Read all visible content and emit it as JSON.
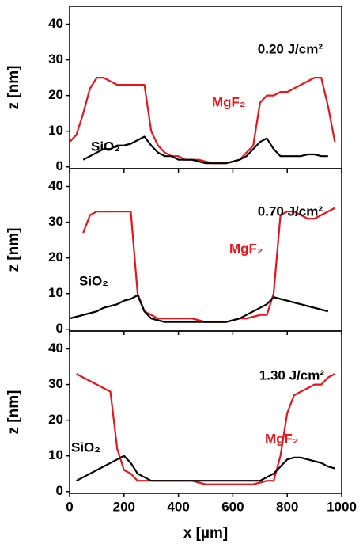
{
  "chart_data": [
    {
      "type": "line",
      "annotation": "0.20 J/cm²",
      "ylabel": "z [nm]",
      "x": [
        0,
        25,
        50,
        75,
        100,
        125,
        150,
        175,
        200,
        225,
        250,
        275,
        300,
        325,
        350,
        375,
        400,
        425,
        450,
        475,
        500,
        525,
        550,
        575,
        600,
        625,
        650,
        675,
        700,
        725,
        750,
        775,
        800,
        825,
        850,
        875,
        900,
        925,
        950,
        975,
        1000
      ],
      "series": [
        {
          "name": "MgF₂",
          "color": "#e8141a",
          "values": [
            7,
            9,
            15,
            22,
            25,
            25,
            24,
            23,
            23,
            23,
            23,
            23,
            10,
            6,
            4,
            3,
            3,
            2,
            2,
            2,
            1.5,
            1,
            1,
            1,
            1.5,
            2,
            4,
            6,
            18,
            20,
            20,
            21,
            21,
            22,
            23,
            24,
            25,
            25,
            17,
            7,
            null
          ]
        },
        {
          "name": "SiO₂",
          "color": "#000000",
          "values": [
            null,
            null,
            2,
            3,
            4,
            5,
            5,
            6,
            6,
            6.5,
            7.5,
            8.5,
            6,
            4,
            3,
            3,
            2,
            2,
            2,
            1.5,
            1,
            1,
            1,
            1,
            1.5,
            2,
            3,
            5,
            7,
            8,
            5,
            3,
            3,
            3,
            3,
            3.5,
            3.5,
            3,
            3,
            null,
            null
          ]
        }
      ],
      "xlim": [
        0,
        1000
      ],
      "xticks": [
        0,
        200,
        400,
        600,
        800,
        1000
      ],
      "ylim": [
        -0.5,
        45
      ],
      "yticks": [
        0,
        10,
        20,
        30,
        40
      ]
    },
    {
      "type": "line",
      "annotation": "0.70 J/cm²",
      "ylabel": "z [nm]",
      "x": [
        0,
        25,
        50,
        75,
        100,
        125,
        150,
        175,
        200,
        225,
        250,
        275,
        300,
        325,
        350,
        375,
        400,
        425,
        450,
        475,
        500,
        525,
        550,
        575,
        600,
        625,
        650,
        675,
        700,
        725,
        750,
        775,
        800,
        825,
        850,
        875,
        900,
        925,
        950,
        975,
        1000
      ],
      "series": [
        {
          "name": "MgF₂",
          "color": "#e8141a",
          "values": [
            null,
            null,
            27,
            32,
            33,
            33,
            33,
            33,
            33,
            33,
            10,
            5,
            4,
            3,
            3,
            3,
            3,
            3,
            3,
            2.5,
            2,
            2,
            2,
            2,
            2.5,
            3,
            3,
            3.5,
            4,
            4,
            10,
            32,
            33,
            33,
            32,
            31,
            31,
            32,
            33,
            34,
            null
          ]
        },
        {
          "name": "SiO₂",
          "color": "#000000",
          "values": [
            3,
            3.5,
            4,
            4.5,
            5,
            6,
            6.5,
            7,
            8,
            8.5,
            9.5,
            5,
            3,
            2.5,
            2,
            2,
            2,
            2,
            2,
            2,
            2,
            2,
            2,
            2,
            2.5,
            3,
            4,
            5,
            6,
            7,
            9,
            8.5,
            8,
            7.5,
            7,
            6.5,
            6,
            5.5,
            5,
            null,
            null
          ]
        }
      ],
      "xlim": [
        0,
        1000
      ],
      "xticks": [
        0,
        200,
        400,
        600,
        800,
        1000
      ],
      "ylim": [
        -0.5,
        45
      ],
      "yticks": [
        0,
        10,
        20,
        30,
        40
      ]
    },
    {
      "type": "line",
      "annotation": "1.30 J/cm²",
      "ylabel": "z [nm]",
      "xlabel": "x [µm]",
      "x": [
        0,
        25,
        50,
        75,
        100,
        125,
        150,
        175,
        200,
        225,
        250,
        275,
        300,
        325,
        350,
        375,
        400,
        425,
        450,
        475,
        500,
        525,
        550,
        575,
        600,
        625,
        650,
        675,
        700,
        725,
        750,
        775,
        800,
        825,
        850,
        875,
        900,
        925,
        950,
        975,
        1000
      ],
      "series": [
        {
          "name": "MgF₂",
          "color": "#e8141a",
          "values": [
            null,
            33,
            32,
            31,
            30,
            29,
            28,
            12,
            6,
            5,
            3,
            3,
            3,
            3,
            3,
            3,
            3,
            3,
            3,
            2.5,
            2,
            2,
            2,
            2,
            2,
            2,
            2,
            2,
            2.5,
            3,
            3,
            10,
            22,
            27,
            28,
            29,
            30,
            30,
            32,
            33,
            null
          ]
        },
        {
          "name": "SiO₂",
          "color": "#000000",
          "values": [
            null,
            3,
            4,
            5,
            6,
            7,
            8,
            9,
            10,
            8,
            5,
            4,
            3,
            3,
            3,
            3,
            3,
            3,
            3,
            3,
            3,
            3,
            3,
            3,
            3,
            3,
            3,
            3,
            3,
            4,
            5,
            7,
            9,
            9.5,
            9.5,
            9,
            8.5,
            8,
            7,
            6.5,
            null
          ]
        }
      ],
      "xlim": [
        0,
        1000
      ],
      "xticks": [
        0,
        200,
        400,
        600,
        800,
        1000
      ],
      "ylim": [
        -0.5,
        45
      ],
      "yticks": [
        0,
        10,
        20,
        30,
        40
      ]
    }
  ]
}
